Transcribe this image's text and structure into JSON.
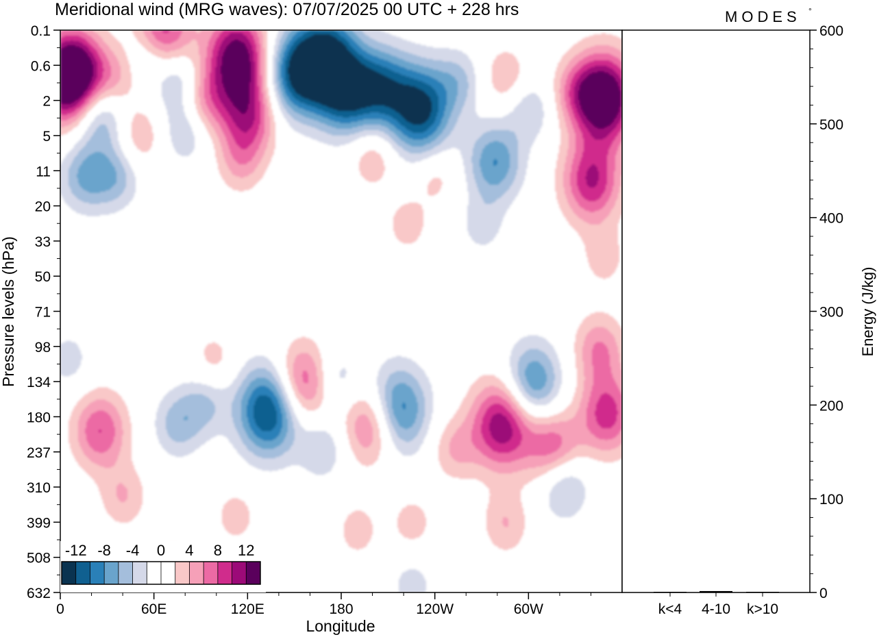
{
  "chart_data": [
    {
      "type": "heatmap",
      "title": "Meridional wind (MRG waves):  07/07/2025  00 UTC  + 228 hrs",
      "xlabel": "Longitude",
      "ylabel": "Pressure levels (hPa)",
      "x_ticks": [
        "0",
        "60E",
        "120E",
        "180",
        "120W",
        "60W"
      ],
      "x_tick_degrees": [
        0,
        60,
        120,
        180,
        240,
        300
      ],
      "xlim": [
        0,
        360
      ],
      "y_ticks": [
        "0.1",
        "0.6",
        "2",
        "5",
        "11",
        "20",
        "33",
        "50",
        "71",
        "98",
        "134",
        "180",
        "237",
        "310",
        "399",
        "508",
        "632"
      ],
      "y_scale": "log",
      "colorbar": {
        "labels": [
          "-12",
          "-8",
          "-4",
          "0",
          "4",
          "8",
          "12"
        ],
        "colors": [
          "#0a3350",
          "#106090",
          "#2a80b8",
          "#6aa4cc",
          "#a4bedc",
          "#d5d9e9",
          "#ffffff",
          "#ffffff",
          "#f9c8c8",
          "#f6a0b8",
          "#ec6aa4",
          "#d02c8c",
          "#9c0a78",
          "#5a005c"
        ]
      },
      "fields": [
        {
          "x": 3,
          "y": 1.0,
          "value": 12
        },
        {
          "x": 10,
          "y": 0.7,
          "value": 9
        },
        {
          "x": 35,
          "y": 0.9,
          "value": 4
        },
        {
          "x": 25,
          "y": 3.0,
          "value": -6
        },
        {
          "x": 15,
          "y": 12,
          "value": -6
        },
        {
          "x": 35,
          "y": 12,
          "value": -5
        },
        {
          "x": 50,
          "y": 5,
          "value": 4
        },
        {
          "x": 65,
          "y": 0.1,
          "value": 10
        },
        {
          "x": 55,
          "y": 0.3,
          "value": -4
        },
        {
          "x": 75,
          "y": 1.0,
          "value": -5
        },
        {
          "x": 80,
          "y": 4.5,
          "value": -4
        },
        {
          "x": 92,
          "y": 2.0,
          "value": 5
        },
        {
          "x": 113,
          "y": 0.4,
          "value": 14
        },
        {
          "x": 120,
          "y": 3.0,
          "value": 9
        },
        {
          "x": 115,
          "y": 9,
          "value": 4
        },
        {
          "x": 150,
          "y": 0.8,
          "value": -11
        },
        {
          "x": 170,
          "y": 0.4,
          "value": -13
        },
        {
          "x": 183,
          "y": 1.6,
          "value": -10
        },
        {
          "x": 205,
          "y": 1.2,
          "value": -9
        },
        {
          "x": 230,
          "y": 2.5,
          "value": -13
        },
        {
          "x": 255,
          "y": 1.0,
          "value": -4
        },
        {
          "x": 200,
          "y": 8,
          "value": 4
        },
        {
          "x": 240,
          "y": 12,
          "value": 3
        },
        {
          "x": 278,
          "y": 9,
          "value": -8
        },
        {
          "x": 300,
          "y": 2.5,
          "value": -4
        },
        {
          "x": 285,
          "y": 0.9,
          "value": 4
        },
        {
          "x": 330,
          "y": 1.4,
          "value": 4
        },
        {
          "x": 348,
          "y": 1.8,
          "value": 16
        },
        {
          "x": 340,
          "y": 13,
          "value": 10
        },
        {
          "x": 222,
          "y": 26,
          "value": 3
        },
        {
          "x": 270,
          "y": 26,
          "value": -3
        },
        {
          "x": 348,
          "y": 40,
          "value": 3
        },
        {
          "x": 345,
          "y": 100,
          "value": 6
        },
        {
          "x": 350,
          "y": 175,
          "value": 9
        },
        {
          "x": 25,
          "y": 200,
          "value": 8
        },
        {
          "x": 40,
          "y": 330,
          "value": 4
        },
        {
          "x": 75,
          "y": 190,
          "value": -5
        },
        {
          "x": 92,
          "y": 160,
          "value": -4
        },
        {
          "x": 133,
          "y": 170,
          "value": -13
        },
        {
          "x": 155,
          "y": 135,
          "value": 9
        },
        {
          "x": 168,
          "y": 230,
          "value": -4
        },
        {
          "x": 176,
          "y": 130,
          "value": -4
        },
        {
          "x": 200,
          "y": 190,
          "value": 9
        },
        {
          "x": 190,
          "y": 420,
          "value": 3
        },
        {
          "x": 215,
          "y": 170,
          "value": -11
        },
        {
          "x": 225,
          "y": 400,
          "value": 3
        },
        {
          "x": 252,
          "y": 230,
          "value": 4
        },
        {
          "x": 283,
          "y": 190,
          "value": 12
        },
        {
          "x": 285,
          "y": 400,
          "value": 4
        },
        {
          "x": 302,
          "y": 135,
          "value": -9
        },
        {
          "x": 316,
          "y": 230,
          "value": 8
        },
        {
          "x": 322,
          "y": 300,
          "value": -6
        },
        {
          "x": 98,
          "y": 110,
          "value": 3
        },
        {
          "x": 112,
          "y": 380,
          "value": 3
        },
        {
          "x": 72,
          "y": 520,
          "value": 3
        },
        {
          "x": 5,
          "y": 110,
          "value": -3
        },
        {
          "x": 225,
          "y": 600,
          "value": -3
        }
      ]
    },
    {
      "type": "bar",
      "categories": [
        "k<4",
        "4-10",
        "k>10"
      ],
      "values": [
        0.2,
        1.5,
        0.1
      ],
      "ylabel": "Energy (J/kg)",
      "ylim": [
        0,
        600
      ],
      "y_ticks": [
        "0",
        "100",
        "200",
        "300",
        "400",
        "500",
        "600"
      ]
    }
  ],
  "header": {
    "logo": "MODES",
    "logo_mark": "°"
  }
}
